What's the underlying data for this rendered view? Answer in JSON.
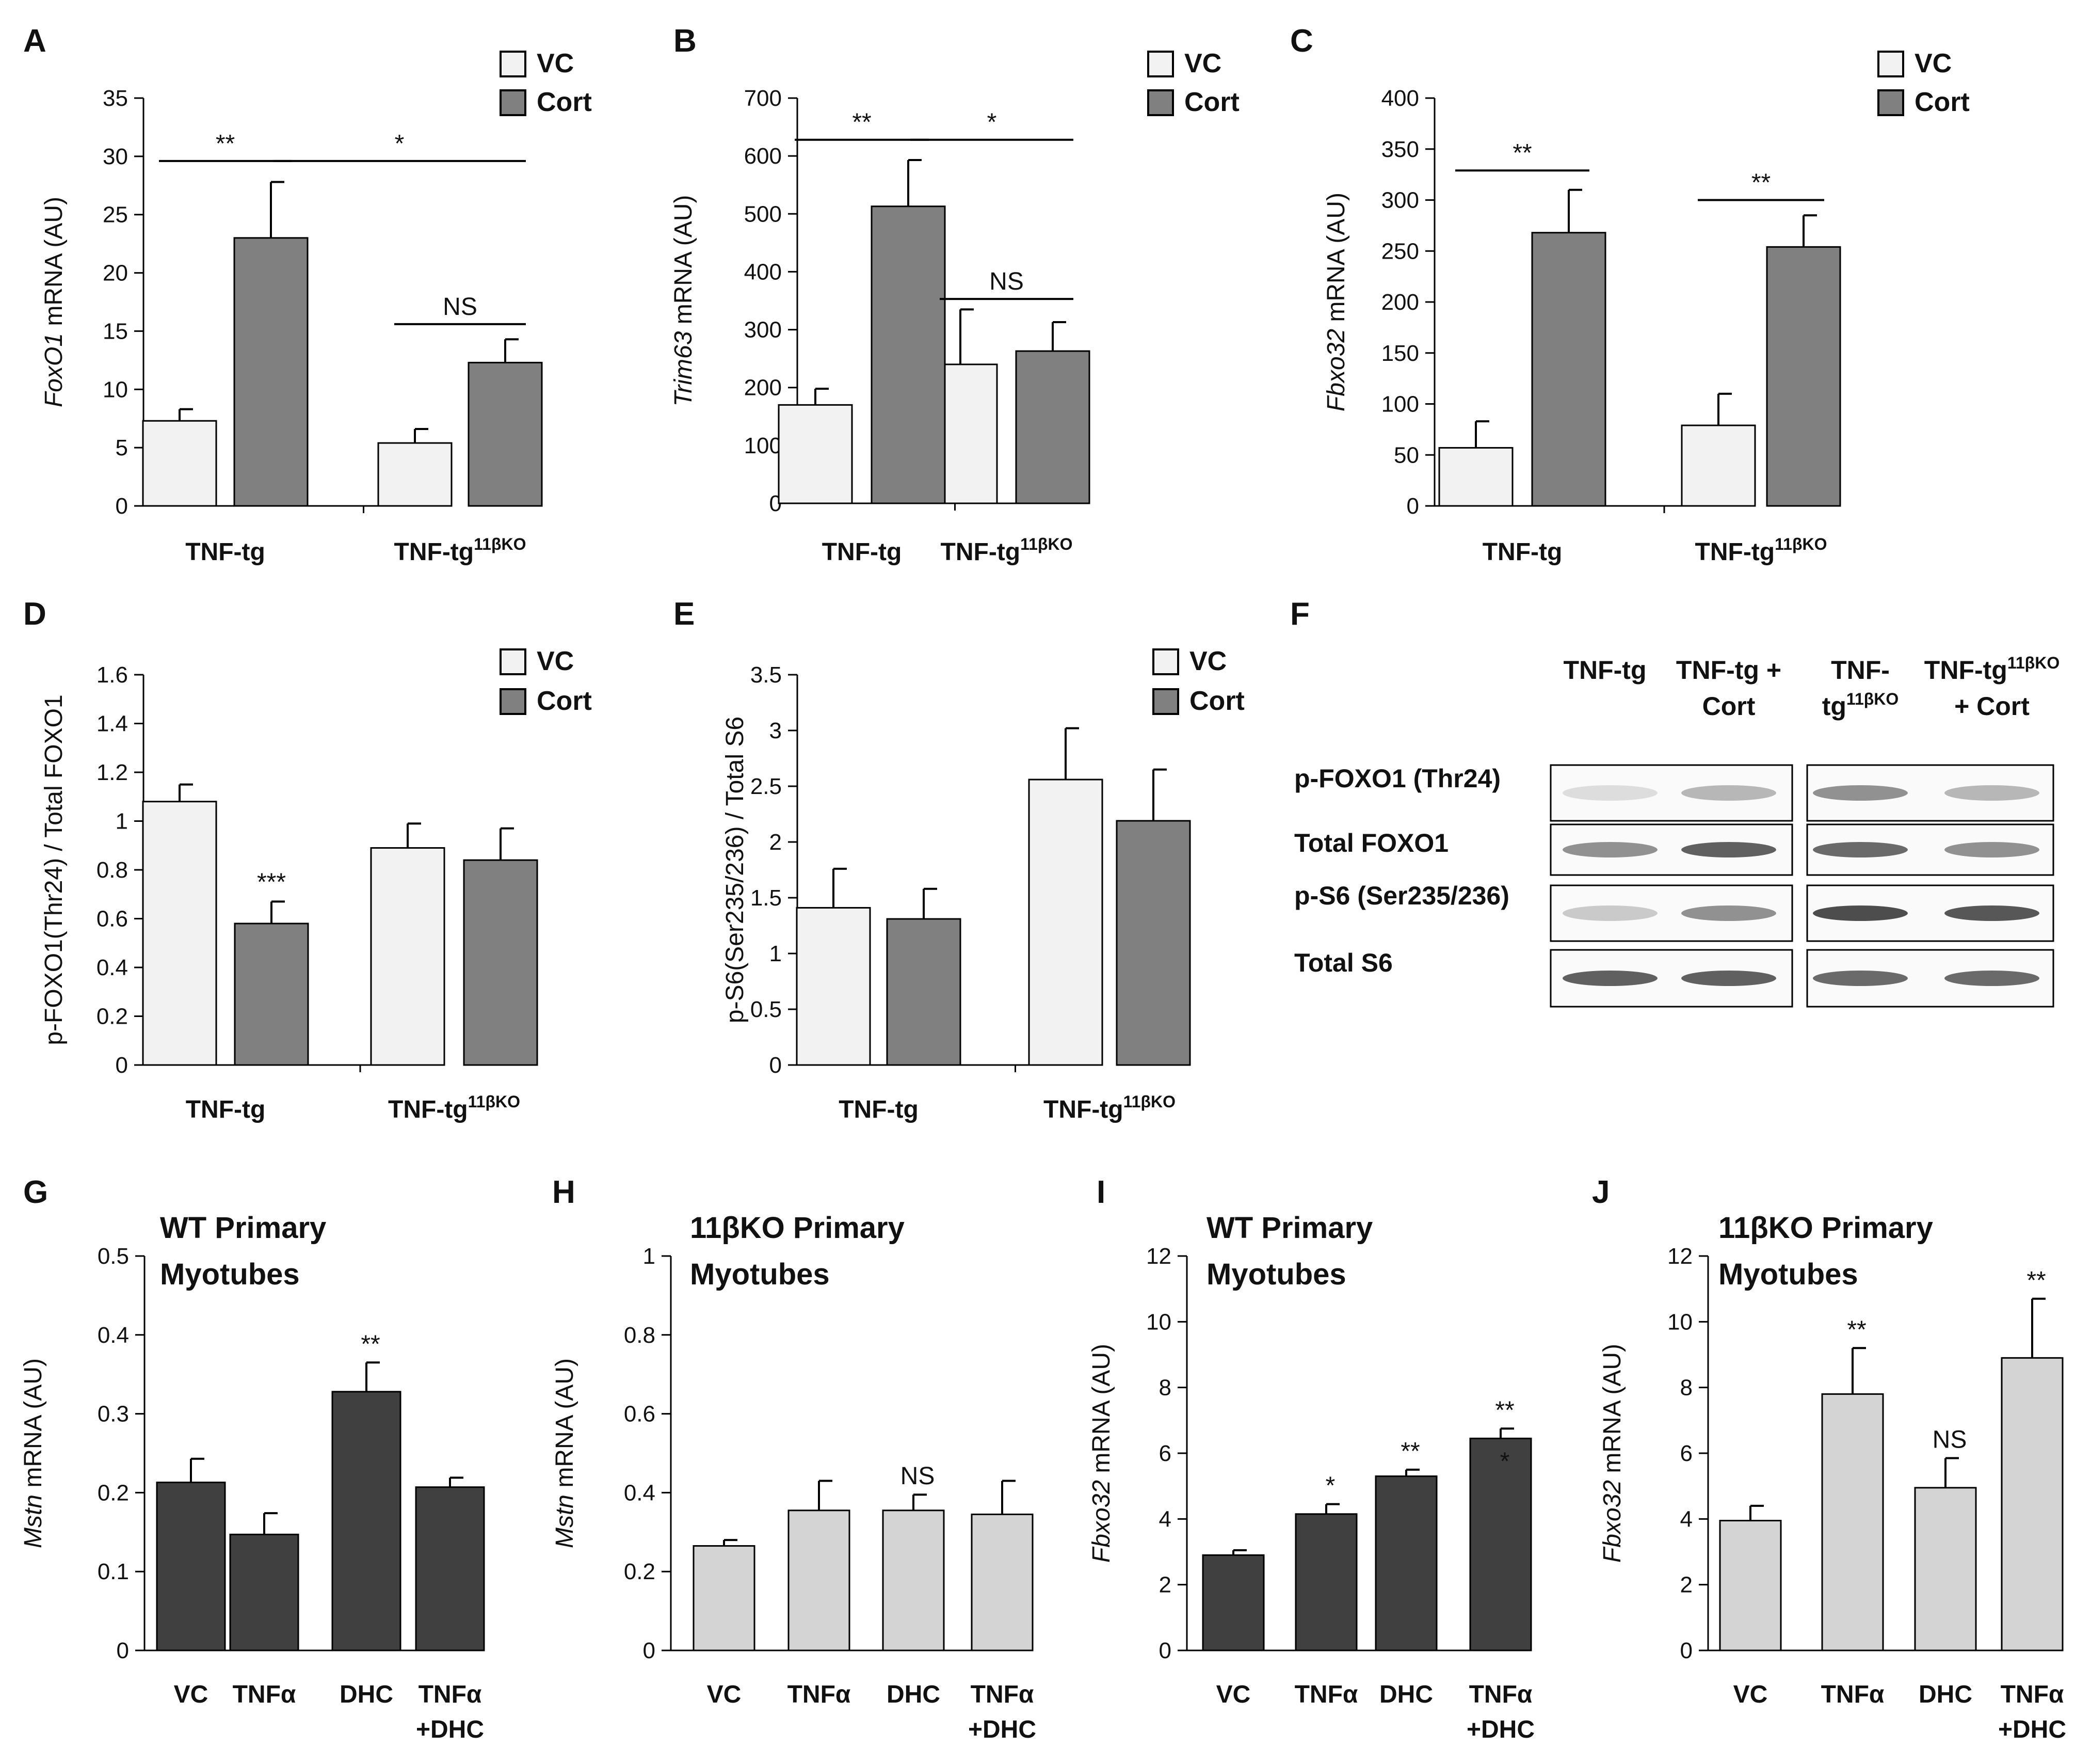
{
  "colors": {
    "vc": "#f2f2f2",
    "cort": "#808080",
    "dark": "#404040",
    "light": "#d4d4d4",
    "axis": "#000000",
    "band": "#3a3a3a"
  },
  "chart_data": [
    {
      "id": "A",
      "type": "bar",
      "title": "",
      "ylabel_italic": "FoxO1",
      "ylabel_rest": " mRNA (AU)",
      "ylim": [
        0,
        35
      ],
      "ticks": [
        0,
        5,
        10,
        15,
        20,
        25,
        30,
        35
      ],
      "legend": [
        "VC",
        "Cort"
      ],
      "groups": [
        {
          "base": "TNF-tg",
          "sup": ""
        },
        {
          "base": "TNF-tg",
          "sup": "11βKO"
        }
      ],
      "series": [
        {
          "name": "VC",
          "values": [
            7.3,
            5.4
          ],
          "errors": [
            1.0,
            1.2
          ]
        },
        {
          "name": "Cort",
          "values": [
            23.0,
            12.3
          ],
          "errors": [
            4.8,
            2.0
          ]
        }
      ],
      "sig": [
        {
          "text": "**",
          "from": [
            0,
            0
          ],
          "to": [
            0,
            1
          ],
          "y": 29.6
        },
        {
          "text": "*",
          "from": [
            0,
            1
          ],
          "to": [
            1,
            1
          ],
          "y": 29.6
        },
        {
          "text": "NS",
          "from": [
            1,
            0
          ],
          "to": [
            1,
            1
          ],
          "y": 15.6
        }
      ]
    },
    {
      "id": "B",
      "type": "bar",
      "title": "",
      "ylabel_italic": "Trim63",
      "ylabel_rest": " mRNA (AU)",
      "ylim": [
        0,
        700
      ],
      "ticks": [
        0,
        100,
        200,
        300,
        400,
        500,
        600,
        700
      ],
      "legend": [
        "VC",
        "Cort"
      ],
      "groups": [
        {
          "base": "TNF-tg",
          "sup": ""
        },
        {
          "base": "TNF-tg",
          "sup": "11βKO"
        }
      ],
      "series": [
        {
          "name": "VC",
          "values": [
            170,
            240
          ],
          "errors": [
            28,
            95
          ]
        },
        {
          "name": "Cort",
          "values": [
            513,
            263
          ],
          "errors": [
            80,
            50
          ]
        }
      ],
      "sig": [
        {
          "text": "**",
          "from": [
            0,
            0
          ],
          "to": [
            0,
            1
          ],
          "y": 628
        },
        {
          "text": "*",
          "from": [
            0,
            1
          ],
          "to": [
            1,
            1
          ],
          "y": 628
        },
        {
          "text": "NS",
          "from": [
            1,
            0
          ],
          "to": [
            1,
            1
          ],
          "y": 353
        }
      ]
    },
    {
      "id": "C",
      "type": "bar",
      "title": "",
      "ylabel_italic": "Fbxo32",
      "ylabel_rest": " mRNA (AU)",
      "ylim": [
        0,
        400
      ],
      "ticks": [
        0,
        50,
        100,
        150,
        200,
        250,
        300,
        350,
        400
      ],
      "legend": [
        "VC",
        "Cort"
      ],
      "groups": [
        {
          "base": "TNF-tg",
          "sup": ""
        },
        {
          "base": "TNF-tg",
          "sup": "11βKO"
        }
      ],
      "series": [
        {
          "name": "VC",
          "values": [
            57,
            79
          ],
          "errors": [
            26,
            31
          ]
        },
        {
          "name": "Cort",
          "values": [
            268,
            254
          ],
          "errors": [
            42,
            31
          ]
        }
      ],
      "sig": [
        {
          "text": "**",
          "from": [
            0,
            0
          ],
          "to": [
            0,
            1
          ],
          "y": 329
        },
        {
          "text": "**",
          "from": [
            1,
            0
          ],
          "to": [
            1,
            1
          ],
          "y": 300
        }
      ]
    },
    {
      "id": "D",
      "type": "bar",
      "title": "",
      "ylabel_italic": "",
      "ylabel_rest": "p-FOXO1(Thr24) / Total FOXO1",
      "ylim": [
        0,
        1.6
      ],
      "ticks": [
        "0",
        "0.2",
        "0.4",
        "0.6",
        "0.8",
        "1",
        "1.2",
        "1.4",
        "1.6"
      ],
      "legend": [
        "VC",
        "Cort"
      ],
      "groups": [
        {
          "base": "TNF-tg",
          "sup": ""
        },
        {
          "base": "TNF-tg",
          "sup": "11βKO"
        }
      ],
      "series": [
        {
          "name": "VC",
          "values": [
            1.08,
            0.89
          ],
          "errors": [
            0.07,
            0.1
          ]
        },
        {
          "name": "Cort",
          "values": [
            0.58,
            0.84
          ],
          "errors": [
            0.09,
            0.13
          ]
        }
      ],
      "stars": [
        {
          "text": "***",
          "g": 0,
          "s": 1
        }
      ]
    },
    {
      "id": "E",
      "type": "bar",
      "title": "",
      "ylabel_italic": "",
      "ylabel_rest": "p-S6(Ser235/236) / Total S6",
      "ylim": [
        0,
        3.5
      ],
      "ticks": [
        "0",
        "0.5",
        "1",
        "1.5",
        "2",
        "2.5",
        "3",
        "3.5"
      ],
      "legend": [
        "VC",
        "Cort"
      ],
      "groups": [
        {
          "base": "TNF-tg",
          "sup": ""
        },
        {
          "base": "TNF-tg",
          "sup": "11βKO"
        }
      ],
      "series": [
        {
          "name": "VC",
          "values": [
            1.41,
            2.56
          ],
          "errors": [
            0.35,
            0.46
          ]
        },
        {
          "name": "Cort",
          "values": [
            1.31,
            2.19
          ],
          "errors": [
            0.27,
            0.46
          ]
        }
      ]
    },
    {
      "id": "G",
      "type": "bar",
      "title_lines": [
        "WT Primary",
        "Myotubes"
      ],
      "ylabel_italic": "Mstn",
      "ylabel_rest": " mRNA (AU)",
      "ylim": [
        0,
        0.5
      ],
      "ticks": [
        "0",
        "0.1",
        "0.2",
        "0.3",
        "0.4",
        "0.5"
      ],
      "categories": [
        [
          "VC"
        ],
        [
          "TNFα"
        ],
        [
          "DHC"
        ],
        [
          "TNFα",
          "+DHC"
        ]
      ],
      "values": [
        0.213,
        0.147,
        0.328,
        0.207
      ],
      "errors": [
        0.03,
        0.027,
        0.037,
        0.012
      ],
      "stars": [
        "",
        "",
        "**",
        ""
      ],
      "style": "dark"
    },
    {
      "id": "H",
      "type": "bar",
      "title_lines": [
        "11βKO Primary",
        "Myotubes"
      ],
      "ylabel_italic": "Mstn",
      "ylabel_rest": " mRNA (AU)",
      "ylim": [
        0,
        1
      ],
      "ticks": [
        "0",
        "0.2",
        "0.4",
        "0.6",
        "0.8",
        "1"
      ],
      "categories": [
        [
          "VC"
        ],
        [
          "TNFα"
        ],
        [
          "DHC"
        ],
        [
          "TNFα",
          "+DHC"
        ]
      ],
      "values": [
        0.265,
        0.355,
        0.355,
        0.345
      ],
      "errors": [
        0.015,
        0.075,
        0.04,
        0.085
      ],
      "stars": [
        "",
        "",
        "NS",
        ""
      ],
      "style": "light"
    },
    {
      "id": "I",
      "type": "bar",
      "title_lines": [
        "WT Primary",
        "Myotubes"
      ],
      "ylabel_italic": "Fbxo32",
      "ylabel_rest": " mRNA (AU)",
      "ylim": [
        0,
        12
      ],
      "ticks": [
        "0",
        "2",
        "4",
        "6",
        "8",
        "10",
        "12"
      ],
      "categories": [
        [
          "VC"
        ],
        [
          "TNFα"
        ],
        [
          "DHC"
        ],
        [
          "TNFα",
          "+DHC"
        ]
      ],
      "values": [
        2.9,
        4.15,
        5.3,
        6.45
      ],
      "errors": [
        0.15,
        0.3,
        0.2,
        0.3
      ],
      "stars": [
        "",
        "*",
        "**",
        "**"
      ],
      "style": "dark"
    },
    {
      "id": "J",
      "type": "bar",
      "title_lines": [
        "11βKO Primary",
        "Myotubes"
      ],
      "ylabel_italic": "Fbxo32",
      "ylabel_rest": " mRNA (AU)",
      "ylim": [
        0,
        12
      ],
      "ticks": [
        "0",
        "2",
        "4",
        "6",
        "8",
        "10",
        "12"
      ],
      "categories": [
        [
          "VC"
        ],
        [
          "TNFα"
        ],
        [
          "DHC"
        ],
        [
          "TNFα",
          "+DHC"
        ]
      ],
      "values": [
        3.95,
        7.8,
        4.95,
        8.9
      ],
      "errors": [
        0.45,
        1.4,
        0.9,
        1.8
      ],
      "stars": [
        "",
        "**",
        "NS",
        "**"
      ],
      "style": "light"
    }
  ],
  "blot": {
    "letter": "F",
    "columns": [
      {
        "lines": [
          {
            "base": "TNF-tg",
            "sup": ""
          }
        ]
      },
      {
        "lines": [
          {
            "base": "TNF-tg +",
            "sup": ""
          },
          {
            "base": "Cort",
            "sup": ""
          }
        ]
      },
      {
        "lines": [
          {
            "base": "TNF-",
            "sup": ""
          },
          {
            "base": "tg",
            "sup": "11βKO"
          }
        ]
      },
      {
        "lines": [
          {
            "base": "TNF-tg",
            "sup": "11βKO"
          },
          {
            "base": "+ Cort",
            "sup": ""
          }
        ]
      }
    ],
    "rows": [
      "p-FOXO1 (Thr24)",
      "Total FOXO1",
      "p-S6 (Ser235/236)",
      "Total S6"
    ]
  }
}
